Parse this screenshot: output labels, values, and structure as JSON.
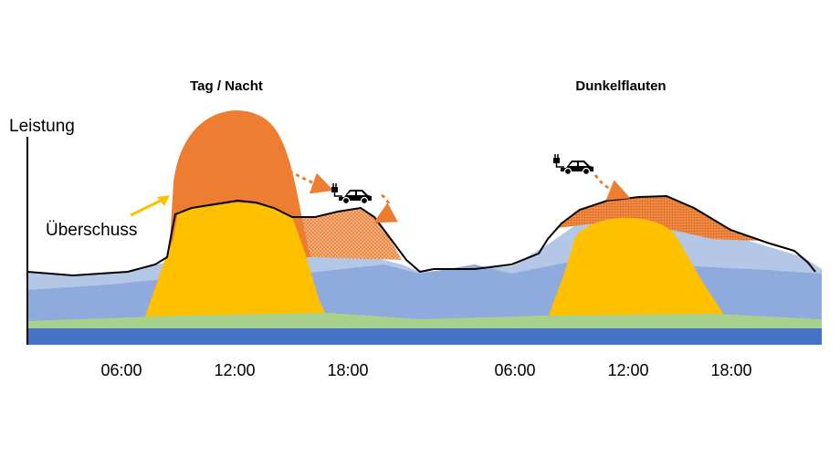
{
  "diagram": {
    "y_axis_label": "Leistung",
    "scenario_titles": {
      "day_night": "Tag / Nacht",
      "dark_doldrums": "Dunkelflauten"
    },
    "time_ticks_day_night": [
      "06:00",
      "12:00",
      "18:00"
    ],
    "time_ticks_dark_doldrums": [
      "06:00",
      "12:00",
      "18:00"
    ],
    "surplus_label": "Überschuss",
    "icons": [
      "ev-car-plug-icon",
      "ev-car-plug-icon"
    ],
    "colors": {
      "solar": "#FFC000",
      "surplus": "#ED7D31",
      "surplus_dotted": "#F4A46A",
      "wind_light": "#B4C7E7",
      "wind": "#8FAADC",
      "biomass": "#A9D18E",
      "baseload": "#4472C4",
      "demand_line": "#000000",
      "arrow": "#ED7D31",
      "callout_arrow": "#FFC000"
    }
  }
}
